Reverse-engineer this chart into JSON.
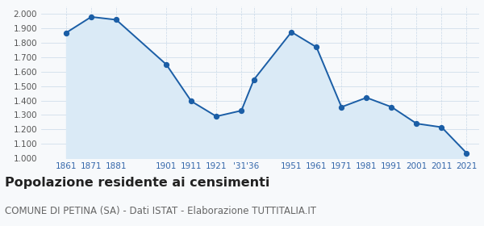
{
  "years": [
    1861,
    1871,
    1881,
    1901,
    1911,
    1921,
    1931,
    1936,
    1951,
    1961,
    1971,
    1981,
    1991,
    2001,
    2011,
    2021
  ],
  "x_labels": [
    "1861",
    "1871",
    "1881",
    "",
    "1901",
    "1911",
    "1921",
    "’31’36",
    "",
    "1951",
    "1961",
    "1971",
    "1981",
    "1991",
    "2001",
    "2011",
    "2021"
  ],
  "population": [
    1870,
    1980,
    1960,
    1650,
    1395,
    1290,
    1330,
    1545,
    1875,
    1770,
    1355,
    1420,
    1355,
    1240,
    1215,
    1035
  ],
  "line_color": "#1b5ea6",
  "fill_color": "#daeaf6",
  "marker_color": "#1b5ea6",
  "grid_color": "#c8d8e8",
  "bg_color": "#f7f9fb",
  "ylim": [
    1000,
    2050
  ],
  "yticks": [
    1000,
    1100,
    1200,
    1300,
    1400,
    1500,
    1600,
    1700,
    1800,
    1900,
    2000
  ],
  "title": "Popolazione residente ai censimenti",
  "subtitle": "COMUNE DI PETINA (SA) - Dati ISTAT - Elaborazione TUTTITALIA.IT",
  "title_fontsize": 11.5,
  "subtitle_fontsize": 8.5
}
